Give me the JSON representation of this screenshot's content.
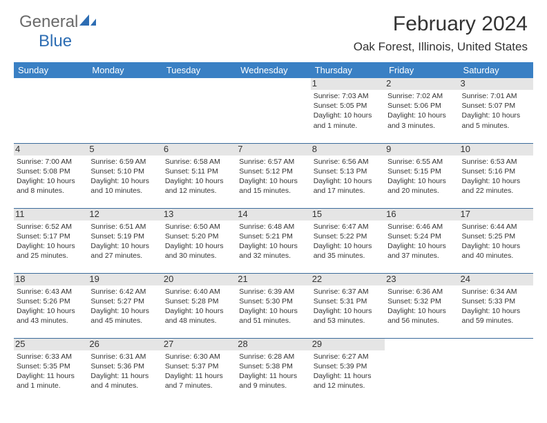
{
  "logo": {
    "gray": "General",
    "blue": "Blue"
  },
  "title": "February 2024",
  "location": "Oak Forest, Illinois, United States",
  "header_bg": "#3a80c4",
  "rule_color": "#3a6a9a",
  "daynum_bg": "#e5e5e5",
  "weekdays": [
    "Sunday",
    "Monday",
    "Tuesday",
    "Wednesday",
    "Thursday",
    "Friday",
    "Saturday"
  ],
  "weeks": [
    [
      null,
      null,
      null,
      null,
      {
        "n": "1",
        "sr": "7:03 AM",
        "ss": "5:05 PM",
        "dl": "10 hours and 1 minute."
      },
      {
        "n": "2",
        "sr": "7:02 AM",
        "ss": "5:06 PM",
        "dl": "10 hours and 3 minutes."
      },
      {
        "n": "3",
        "sr": "7:01 AM",
        "ss": "5:07 PM",
        "dl": "10 hours and 5 minutes."
      }
    ],
    [
      {
        "n": "4",
        "sr": "7:00 AM",
        "ss": "5:08 PM",
        "dl": "10 hours and 8 minutes."
      },
      {
        "n": "5",
        "sr": "6:59 AM",
        "ss": "5:10 PM",
        "dl": "10 hours and 10 minutes."
      },
      {
        "n": "6",
        "sr": "6:58 AM",
        "ss": "5:11 PM",
        "dl": "10 hours and 12 minutes."
      },
      {
        "n": "7",
        "sr": "6:57 AM",
        "ss": "5:12 PM",
        "dl": "10 hours and 15 minutes."
      },
      {
        "n": "8",
        "sr": "6:56 AM",
        "ss": "5:13 PM",
        "dl": "10 hours and 17 minutes."
      },
      {
        "n": "9",
        "sr": "6:55 AM",
        "ss": "5:15 PM",
        "dl": "10 hours and 20 minutes."
      },
      {
        "n": "10",
        "sr": "6:53 AM",
        "ss": "5:16 PM",
        "dl": "10 hours and 22 minutes."
      }
    ],
    [
      {
        "n": "11",
        "sr": "6:52 AM",
        "ss": "5:17 PM",
        "dl": "10 hours and 25 minutes."
      },
      {
        "n": "12",
        "sr": "6:51 AM",
        "ss": "5:19 PM",
        "dl": "10 hours and 27 minutes."
      },
      {
        "n": "13",
        "sr": "6:50 AM",
        "ss": "5:20 PM",
        "dl": "10 hours and 30 minutes."
      },
      {
        "n": "14",
        "sr": "6:48 AM",
        "ss": "5:21 PM",
        "dl": "10 hours and 32 minutes."
      },
      {
        "n": "15",
        "sr": "6:47 AM",
        "ss": "5:22 PM",
        "dl": "10 hours and 35 minutes."
      },
      {
        "n": "16",
        "sr": "6:46 AM",
        "ss": "5:24 PM",
        "dl": "10 hours and 37 minutes."
      },
      {
        "n": "17",
        "sr": "6:44 AM",
        "ss": "5:25 PM",
        "dl": "10 hours and 40 minutes."
      }
    ],
    [
      {
        "n": "18",
        "sr": "6:43 AM",
        "ss": "5:26 PM",
        "dl": "10 hours and 43 minutes."
      },
      {
        "n": "19",
        "sr": "6:42 AM",
        "ss": "5:27 PM",
        "dl": "10 hours and 45 minutes."
      },
      {
        "n": "20",
        "sr": "6:40 AM",
        "ss": "5:28 PM",
        "dl": "10 hours and 48 minutes."
      },
      {
        "n": "21",
        "sr": "6:39 AM",
        "ss": "5:30 PM",
        "dl": "10 hours and 51 minutes."
      },
      {
        "n": "22",
        "sr": "6:37 AM",
        "ss": "5:31 PM",
        "dl": "10 hours and 53 minutes."
      },
      {
        "n": "23",
        "sr": "6:36 AM",
        "ss": "5:32 PM",
        "dl": "10 hours and 56 minutes."
      },
      {
        "n": "24",
        "sr": "6:34 AM",
        "ss": "5:33 PM",
        "dl": "10 hours and 59 minutes."
      }
    ],
    [
      {
        "n": "25",
        "sr": "6:33 AM",
        "ss": "5:35 PM",
        "dl": "11 hours and 1 minute."
      },
      {
        "n": "26",
        "sr": "6:31 AM",
        "ss": "5:36 PM",
        "dl": "11 hours and 4 minutes."
      },
      {
        "n": "27",
        "sr": "6:30 AM",
        "ss": "5:37 PM",
        "dl": "11 hours and 7 minutes."
      },
      {
        "n": "28",
        "sr": "6:28 AM",
        "ss": "5:38 PM",
        "dl": "11 hours and 9 minutes."
      },
      {
        "n": "29",
        "sr": "6:27 AM",
        "ss": "5:39 PM",
        "dl": "11 hours and 12 minutes."
      },
      null,
      null
    ]
  ]
}
